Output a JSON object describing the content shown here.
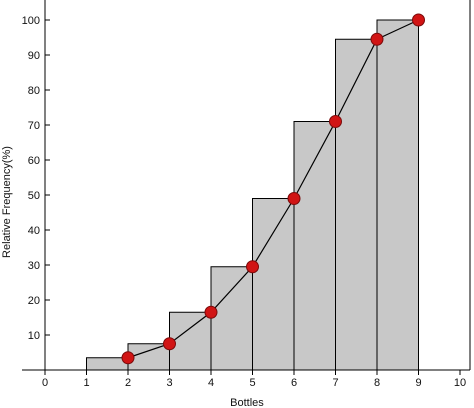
{
  "chart_data": {
    "type": "bar",
    "title": "",
    "xlabel": "Bottles",
    "ylabel": "Relative Frequency(%)",
    "xlim": [
      0,
      10
    ],
    "ylim": [
      0,
      100
    ],
    "x_ticks": [
      "0",
      "1",
      "2",
      "3",
      "4",
      "5",
      "6",
      "7",
      "8",
      "9",
      "10"
    ],
    "y_ticks": [
      "10",
      "20",
      "30",
      "40",
      "50",
      "60",
      "70",
      "80",
      "90",
      "100"
    ],
    "bars": [
      {
        "x0": 1,
        "x1": 2,
        "value": 3.5
      },
      {
        "x0": 2,
        "x1": 3,
        "value": 7.5
      },
      {
        "x0": 3,
        "x1": 4,
        "value": 16.5
      },
      {
        "x0": 4,
        "x1": 5,
        "value": 29.5
      },
      {
        "x0": 5,
        "x1": 6,
        "value": 49.0
      },
      {
        "x0": 6,
        "x1": 7,
        "value": 71.0
      },
      {
        "x0": 7,
        "x1": 8,
        "value": 94.5
      },
      {
        "x0": 8,
        "x1": 9,
        "value": 100.0
      }
    ],
    "series": [
      {
        "type": "line",
        "x": [
          2,
          3,
          4,
          5,
          6,
          7,
          8,
          9
        ],
        "values": [
          3.5,
          7.5,
          16.5,
          29.5,
          49.0,
          71.0,
          94.5,
          100.0
        ]
      }
    ],
    "grid": false,
    "legend": "none",
    "colors": {
      "bar_fill": "#c8c8c8",
      "bar_stroke": "#000000",
      "marker": "#d11414",
      "line": "#000000"
    }
  }
}
